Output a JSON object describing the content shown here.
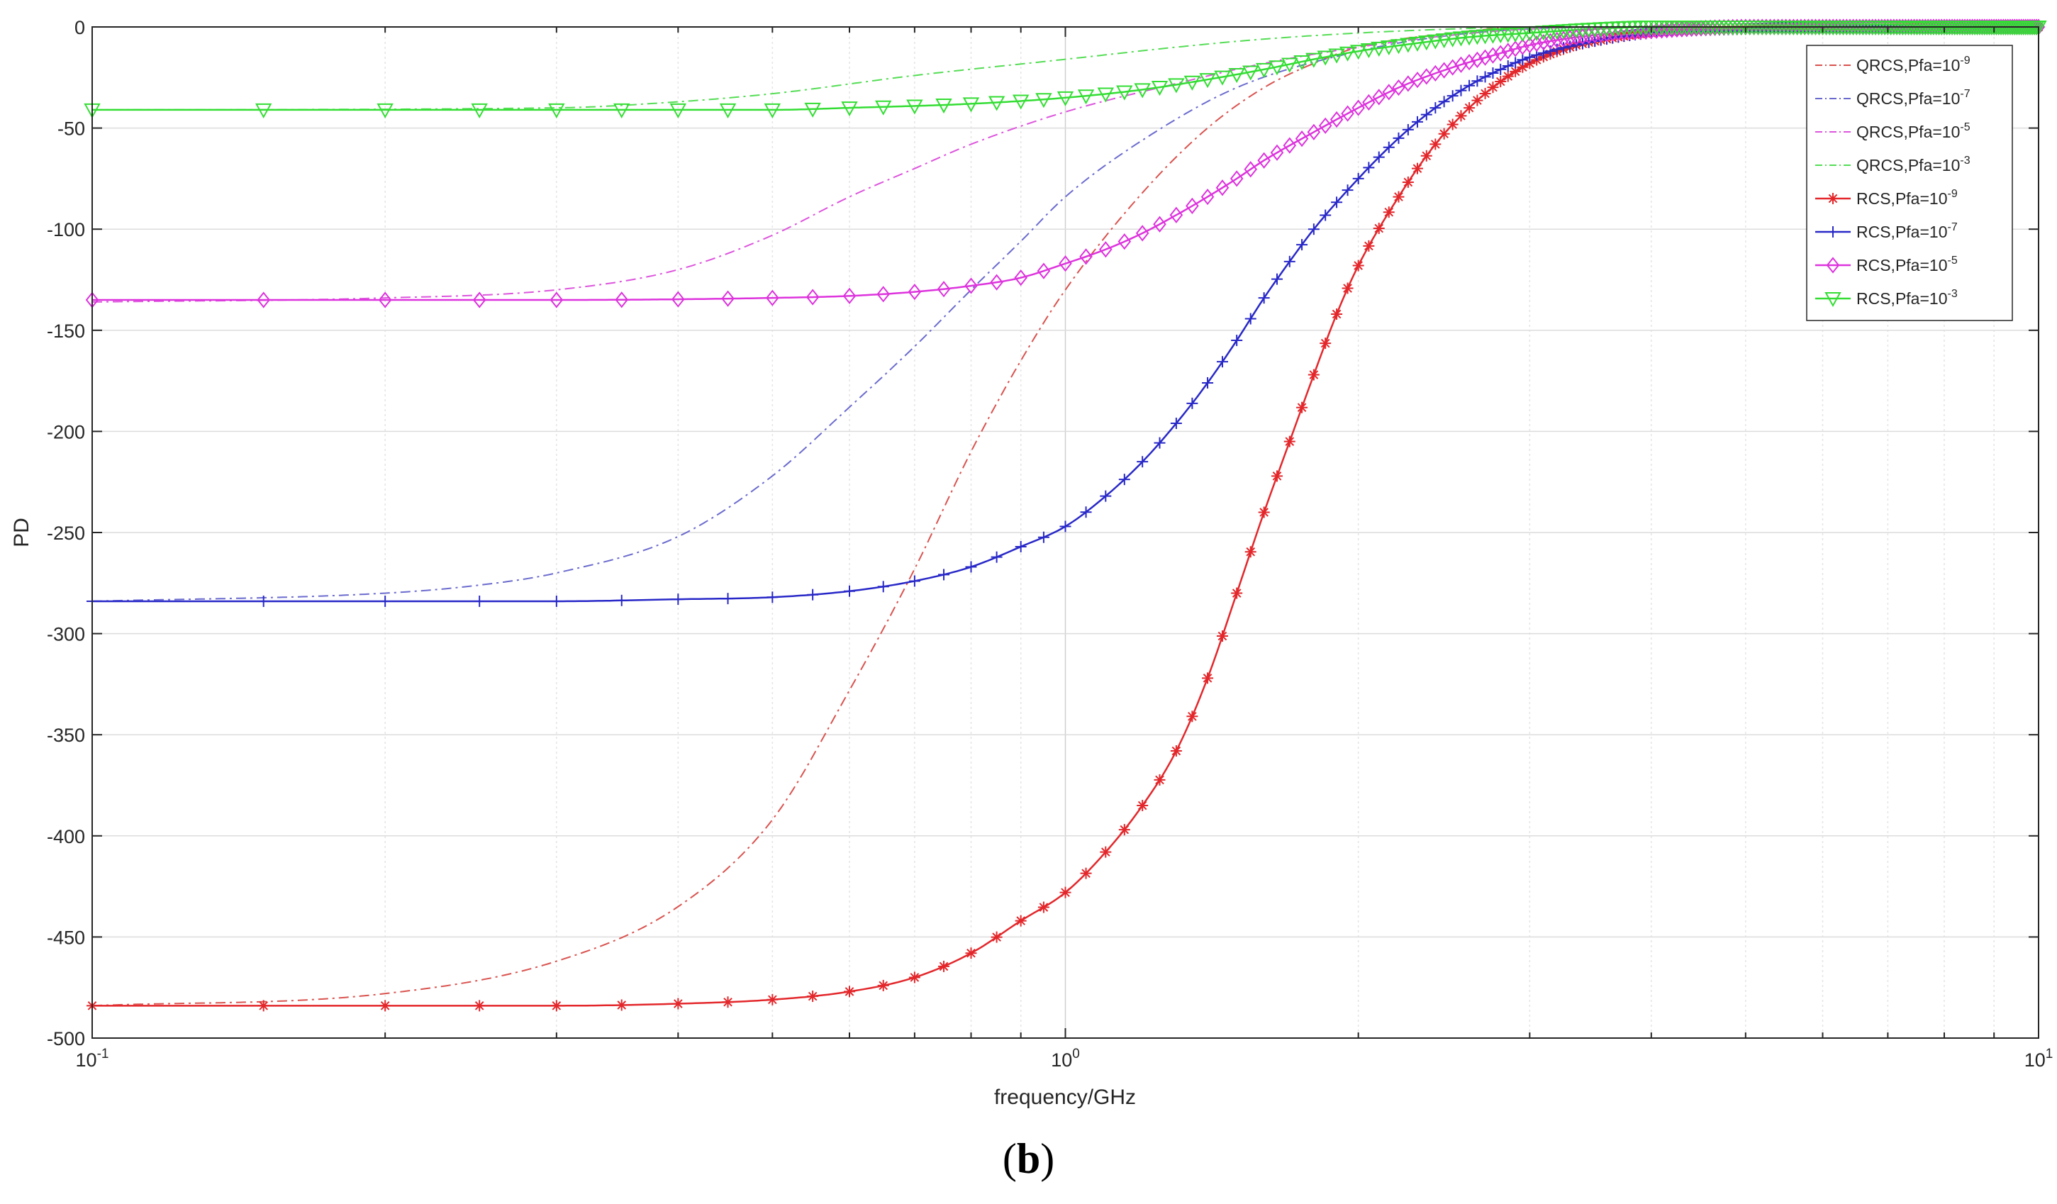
{
  "caption": {
    "open": "(",
    "letter": "b",
    "close": ")"
  },
  "chart_data": {
    "type": "line",
    "xscale": "log",
    "xlabel": "frequency/GHz",
    "ylabel": "PD",
    "xlim": [
      0.1,
      10
    ],
    "ylim": [
      -500,
      0
    ],
    "grid": true,
    "legend_position": "top-right",
    "x_ticks": [
      {
        "base": "10",
        "exp": "-1",
        "value": 0.1
      },
      {
        "base": "10",
        "exp": "0",
        "value": 1
      },
      {
        "base": "10",
        "exp": "1",
        "value": 10
      }
    ],
    "y_ticks": [
      "0",
      "-50",
      "-100",
      "-150",
      "-200",
      "-250",
      "-300",
      "-350",
      "-400",
      "-450",
      "-500"
    ],
    "series": [
      {
        "name": "QRCS,Pfa=10",
        "exp": "-9",
        "color": "#d9534f",
        "style": "dashdot",
        "marker": "none",
        "points": [
          [
            0.1,
            -484
          ],
          [
            0.2,
            -478
          ],
          [
            0.3,
            -462
          ],
          [
            0.4,
            -435
          ],
          [
            0.5,
            -392
          ],
          [
            0.6,
            -328
          ],
          [
            0.7,
            -268
          ],
          [
            0.8,
            -210
          ],
          [
            0.9,
            -165
          ],
          [
            1.0,
            -130
          ],
          [
            1.2,
            -82
          ],
          [
            1.4,
            -50
          ],
          [
            1.6,
            -30
          ],
          [
            1.8,
            -18
          ],
          [
            2.0,
            -10
          ],
          [
            2.5,
            -3
          ],
          [
            3.0,
            0
          ],
          [
            4.0,
            0
          ],
          [
            10,
            0
          ]
        ]
      },
      {
        "name": "QRCS,Pfa=10",
        "exp": "-7",
        "color": "#6b6bcf",
        "style": "dashdot",
        "marker": "none",
        "points": [
          [
            0.1,
            -284
          ],
          [
            0.2,
            -280
          ],
          [
            0.25,
            -276
          ],
          [
            0.3,
            -270
          ],
          [
            0.4,
            -252
          ],
          [
            0.5,
            -222
          ],
          [
            0.6,
            -188
          ],
          [
            0.7,
            -158
          ],
          [
            0.8,
            -130
          ],
          [
            0.9,
            -106
          ],
          [
            1.0,
            -84
          ],
          [
            1.2,
            -56
          ],
          [
            1.5,
            -30
          ],
          [
            2.0,
            -12
          ],
          [
            2.5,
            -4
          ],
          [
            3.0,
            -1
          ],
          [
            4.0,
            0
          ],
          [
            10,
            0
          ]
        ]
      },
      {
        "name": "QRCS,Pfa=10",
        "exp": "-5",
        "color": "#dd55dd",
        "style": "dashdot",
        "marker": "none",
        "points": [
          [
            0.1,
            -136
          ],
          [
            0.2,
            -134
          ],
          [
            0.3,
            -130
          ],
          [
            0.4,
            -120
          ],
          [
            0.5,
            -103
          ],
          [
            0.6,
            -84
          ],
          [
            0.7,
            -70
          ],
          [
            0.8,
            -58
          ],
          [
            1.0,
            -42
          ],
          [
            1.3,
            -28
          ],
          [
            1.6,
            -18
          ],
          [
            2.0,
            -10
          ],
          [
            2.5,
            -4
          ],
          [
            3.0,
            -1
          ],
          [
            4.0,
            0
          ],
          [
            10,
            0
          ]
        ]
      },
      {
        "name": "QRCS,Pfa=10",
        "exp": "-3",
        "color": "#55dd55",
        "style": "dashdot",
        "marker": "none",
        "points": [
          [
            0.1,
            -41
          ],
          [
            0.3,
            -40
          ],
          [
            0.4,
            -37
          ],
          [
            0.5,
            -33
          ],
          [
            0.7,
            -24
          ],
          [
            1.0,
            -16
          ],
          [
            1.3,
            -10
          ],
          [
            1.6,
            -6
          ],
          [
            2.0,
            -3
          ],
          [
            2.5,
            -1
          ],
          [
            3.0,
            0
          ],
          [
            10,
            0
          ]
        ]
      },
      {
        "name": "RCS,Pfa=10",
        "exp": "-9",
        "color": "#e3272b",
        "style": "solid",
        "marker": "asterisk",
        "points": [
          [
            0.1,
            -484
          ],
          [
            0.15,
            -484
          ],
          [
            0.2,
            -484
          ],
          [
            0.3,
            -484
          ],
          [
            0.4,
            -483
          ],
          [
            0.5,
            -481
          ],
          [
            0.6,
            -477
          ],
          [
            0.7,
            -470
          ],
          [
            0.8,
            -458
          ],
          [
            0.9,
            -442
          ],
          [
            1.0,
            -428
          ],
          [
            1.1,
            -408
          ],
          [
            1.2,
            -385
          ],
          [
            1.3,
            -358
          ],
          [
            1.4,
            -322
          ],
          [
            1.5,
            -280
          ],
          [
            1.6,
            -240
          ],
          [
            1.7,
            -205
          ],
          [
            1.8,
            -172
          ],
          [
            1.9,
            -142
          ],
          [
            2.0,
            -118
          ],
          [
            2.2,
            -84
          ],
          [
            2.4,
            -58
          ],
          [
            2.6,
            -40
          ],
          [
            2.8,
            -27
          ],
          [
            3.0,
            -18
          ],
          [
            3.3,
            -10
          ],
          [
            3.6,
            -6
          ],
          [
            4.0,
            -3
          ],
          [
            5.0,
            -1
          ],
          [
            6.0,
            0
          ],
          [
            10,
            0
          ]
        ]
      },
      {
        "name": "RCS,Pfa=10",
        "exp": "-7",
        "color": "#2828c8",
        "style": "solid",
        "marker": "plus",
        "points": [
          [
            0.1,
            -284
          ],
          [
            0.2,
            -284
          ],
          [
            0.3,
            -284
          ],
          [
            0.4,
            -283
          ],
          [
            0.5,
            -282
          ],
          [
            0.6,
            -279
          ],
          [
            0.7,
            -274
          ],
          [
            0.8,
            -267
          ],
          [
            0.9,
            -257
          ],
          [
            1.0,
            -247
          ],
          [
            1.1,
            -232
          ],
          [
            1.2,
            -215
          ],
          [
            1.3,
            -196
          ],
          [
            1.4,
            -176
          ],
          [
            1.5,
            -155
          ],
          [
            1.6,
            -134
          ],
          [
            1.7,
            -116
          ],
          [
            1.8,
            -100
          ],
          [
            2.0,
            -75
          ],
          [
            2.2,
            -55
          ],
          [
            2.4,
            -40
          ],
          [
            2.6,
            -29
          ],
          [
            2.8,
            -21
          ],
          [
            3.0,
            -15
          ],
          [
            3.5,
            -7
          ],
          [
            4.0,
            -3
          ],
          [
            5.0,
            -1
          ],
          [
            6.0,
            0
          ],
          [
            10,
            0
          ]
        ]
      },
      {
        "name": "RCS,Pfa=10",
        "exp": "-5",
        "color": "#dd33dd",
        "style": "solid",
        "marker": "diamond",
        "points": [
          [
            0.1,
            -135
          ],
          [
            0.2,
            -135
          ],
          [
            0.3,
            -135
          ],
          [
            0.5,
            -134
          ],
          [
            0.6,
            -133
          ],
          [
            0.7,
            -131
          ],
          [
            0.8,
            -128
          ],
          [
            0.9,
            -124
          ],
          [
            1.0,
            -117
          ],
          [
            1.1,
            -110
          ],
          [
            1.2,
            -102
          ],
          [
            1.3,
            -93
          ],
          [
            1.4,
            -84
          ],
          [
            1.5,
            -75
          ],
          [
            1.6,
            -66
          ],
          [
            1.8,
            -52
          ],
          [
            2.0,
            -40
          ],
          [
            2.2,
            -30
          ],
          [
            2.5,
            -20
          ],
          [
            2.8,
            -13
          ],
          [
            3.0,
            -9
          ],
          [
            3.5,
            -4
          ],
          [
            4.0,
            -2
          ],
          [
            5.0,
            0
          ],
          [
            10,
            0
          ]
        ]
      },
      {
        "name": "RCS,Pfa=10",
        "exp": "-3",
        "color": "#33dd33",
        "style": "solid",
        "marker": "triangle-down",
        "points": [
          [
            0.1,
            -41
          ],
          [
            0.3,
            -41
          ],
          [
            0.5,
            -41
          ],
          [
            0.6,
            -40
          ],
          [
            0.8,
            -38
          ],
          [
            1.0,
            -35
          ],
          [
            1.2,
            -31
          ],
          [
            1.4,
            -26
          ],
          [
            1.6,
            -21
          ],
          [
            1.8,
            -16
          ],
          [
            2.0,
            -12
          ],
          [
            2.3,
            -8
          ],
          [
            2.6,
            -5
          ],
          [
            3.0,
            -3
          ],
          [
            3.5,
            -1
          ],
          [
            4.0,
            0
          ],
          [
            10,
            0
          ]
        ]
      }
    ]
  }
}
